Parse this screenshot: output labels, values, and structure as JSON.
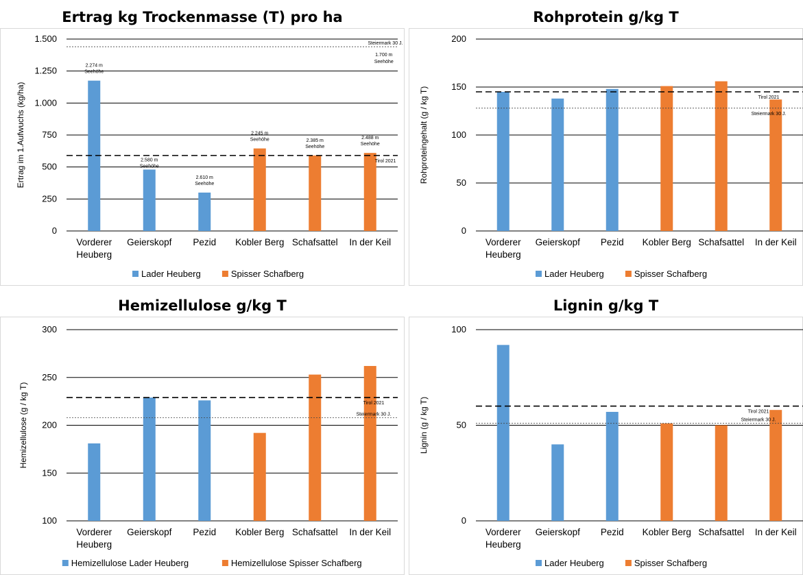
{
  "charts": [
    {
      "title": "Ertrag kg Trockenmasse (T) pro ha",
      "ylabel": "Ertrag im 1.Aufwuchs (kg/ha)",
      "ymin": 0,
      "ymax": 1500,
      "yticks": [
        0,
        250,
        500,
        750,
        1000,
        1250,
        1500
      ],
      "ytick_labels": [
        "0",
        "250",
        "500",
        "750",
        "1.000",
        "1.250",
        "1.500"
      ],
      "categories": [
        "Vorderer Heuberg",
        "Geierskopf",
        "Pezid",
        "Kobler Berg",
        "Schafsattel",
        "In der Keil"
      ],
      "series": [
        {
          "name": "Lader Heuberg",
          "color": "#5b9bd5",
          "values": [
            1175,
            480,
            300,
            null,
            null,
            null
          ]
        },
        {
          "name": "Spisser Schafberg",
          "color": "#ed7d31",
          "values": [
            null,
            null,
            null,
            645,
            590,
            610
          ]
        }
      ],
      "refs": [
        {
          "label": "Tirol 2021",
          "value": 590,
          "style": "dashed"
        },
        {
          "label": "Steiermark 30 J.",
          "value": 1440,
          "style": "dotted"
        }
      ],
      "annotations": [
        {
          "text": "2.274 m Seehöhe",
          "category": 0
        },
        {
          "text": "2.580 m Seehöhe",
          "category": 1
        },
        {
          "text": "2.610 m Seehöhe",
          "category": 2
        },
        {
          "text": "2.245 m Seehöhe",
          "category": 3
        },
        {
          "text": "2.385 m Seehöhe",
          "category": 4
        },
        {
          "text": "2.488 m Seehöhe",
          "category": 5
        },
        {
          "text": "1.700 m Seehöhe",
          "category": 5
        }
      ]
    },
    {
      "title": "Rohprotein g/kg T",
      "ylabel": "Rohproteingehalt (g / kg T)",
      "ymin": 0,
      "ymax": 200,
      "yticks": [
        0,
        50,
        100,
        150,
        200
      ],
      "ytick_labels": [
        "0",
        "50",
        "100",
        "150",
        "200"
      ],
      "categories": [
        "Vorderer Heuberg",
        "Geierskopf",
        "Pezid",
        "Kobler Berg",
        "Schafsattel",
        "In der Keil"
      ],
      "series": [
        {
          "name": "Lader Heuberg",
          "color": "#5b9bd5",
          "values": [
            145,
            138,
            148,
            null,
            null,
            null
          ]
        },
        {
          "name": "Spisser Schafberg",
          "color": "#ed7d31",
          "values": [
            null,
            null,
            null,
            151,
            156,
            137
          ]
        }
      ],
      "refs": [
        {
          "label": "Tirol 2021",
          "value": 145,
          "style": "dashed"
        },
        {
          "label": "Steiermark 30 J.",
          "value": 128,
          "style": "dotted"
        }
      ]
    },
    {
      "title": "Hemizellulose g/kg T",
      "ylabel": "Hemizellulose (g / kg T)",
      "ymin": 100,
      "ymax": 300,
      "yticks": [
        100,
        150,
        200,
        250,
        300
      ],
      "ytick_labels": [
        "100",
        "150",
        "200",
        "250",
        "300"
      ],
      "categories": [
        "Vorderer Heuberg",
        "Geierskopf",
        "Pezid",
        "Kobler Berg",
        "Schafsattel",
        "In der Keil"
      ],
      "series": [
        {
          "name": "Hemizellulose Lader Heuberg",
          "color": "#5b9bd5",
          "values": [
            181,
            229,
            226,
            null,
            null,
            null
          ]
        },
        {
          "name": "Hemizellulose Spisser Schafberg",
          "color": "#ed7d31",
          "values": [
            null,
            null,
            null,
            192,
            253,
            262
          ]
        }
      ],
      "refs": [
        {
          "label": "Tirol 2021",
          "value": 229,
          "style": "dashed"
        },
        {
          "label": "Steiermark 30 J.",
          "value": 208,
          "style": "dotted"
        }
      ]
    },
    {
      "title": "Lignin g/kg T",
      "ylabel": "Lignin (g / kg T)",
      "ymin": 0,
      "ymax": 100,
      "yticks": [
        0,
        50,
        100
      ],
      "ytick_labels": [
        "0",
        "50",
        "100"
      ],
      "categories": [
        "Vorderer Heuberg",
        "Geierskopf",
        "Pezid",
        "Kobler Berg",
        "Schafsattel",
        "In der Keil"
      ],
      "series": [
        {
          "name": "Lader Heuberg",
          "color": "#5b9bd5",
          "values": [
            92,
            40,
            57,
            null,
            null,
            null
          ]
        },
        {
          "name": "Spisser Schafberg",
          "color": "#ed7d31",
          "values": [
            null,
            null,
            null,
            51,
            50,
            58
          ]
        }
      ],
      "refs": [
        {
          "label": "Tirol 2021",
          "value": 60,
          "style": "dashed"
        },
        {
          "label": "Steiermark 30 J.",
          "value": 51,
          "style": "dotted"
        }
      ]
    }
  ]
}
